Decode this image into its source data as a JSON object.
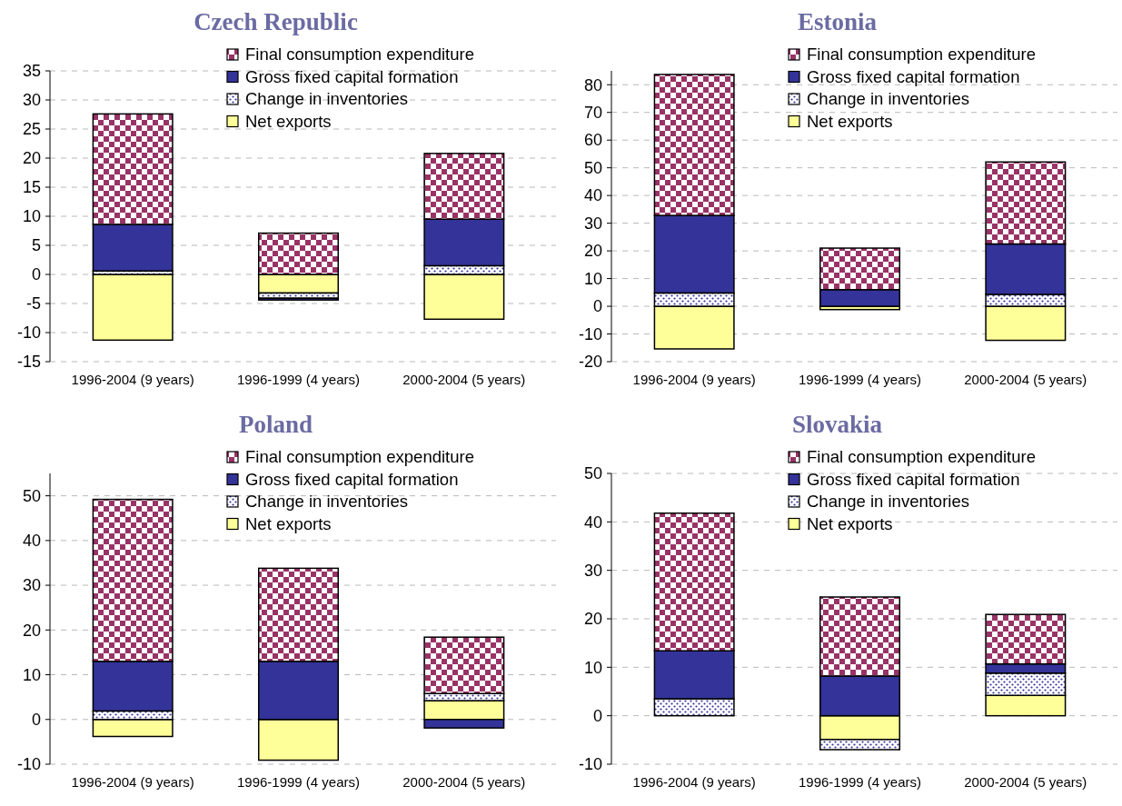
{
  "chart_data": [
    {
      "type": "bar",
      "stacked": true,
      "title": "Czech Republic",
      "categories": [
        "1996-2004 (9 years)",
        "1996-1999 (4 years)",
        "2000-2004 (5 years)"
      ],
      "series": [
        {
          "name": "Net exports",
          "color": "#ffff99",
          "values": [
            -11.3,
            -3.2,
            -7.7
          ]
        },
        {
          "name": "Change in inventories",
          "color": "#333399",
          "values": [
            0.6,
            -0.9,
            1.5
          ]
        },
        {
          "name": "Gross fixed capital formation",
          "color": "#333399",
          "values": [
            8.0,
            -0.3,
            8.0
          ]
        },
        {
          "name": "Final consumption expenditure",
          "color": "#993366",
          "values": [
            19.0,
            7.1,
            11.3
          ]
        }
      ],
      "ylim": [
        -15,
        35
      ],
      "yticks": [
        -15,
        -10,
        -5,
        0,
        5,
        10,
        15,
        20,
        25,
        30,
        35
      ],
      "grid": "y",
      "legend": "top right"
    },
    {
      "type": "bar",
      "stacked": true,
      "title": "Estonia",
      "categories": [
        "1996-2004 (9 years)",
        "1996-1999 (4 years)",
        "2000-2004 (5 years)"
      ],
      "series": [
        {
          "name": "Net exports",
          "color": "#ffff99",
          "values": [
            -15.4,
            -1.2,
            -12.3
          ]
        },
        {
          "name": "Change in inventories",
          "color": "#333399",
          "values": [
            4.8,
            0,
            4.3
          ]
        },
        {
          "name": "Gross fixed capital formation",
          "color": "#333399",
          "values": [
            28.0,
            6.0,
            18.2
          ]
        },
        {
          "name": "Final consumption expenditure",
          "color": "#993366",
          "values": [
            50.9,
            15.0,
            29.6
          ]
        }
      ],
      "ylim": [
        -20,
        85
      ],
      "yticks": [
        -20,
        -10,
        0,
        10,
        20,
        30,
        40,
        50,
        60,
        70,
        80
      ],
      "grid": "y",
      "legend": "top right"
    },
    {
      "type": "bar",
      "stacked": true,
      "title": "Poland",
      "categories": [
        "1996-2004 (9 years)",
        "1996-1999 (4 years)",
        "2000-2004 (5 years)"
      ],
      "series": [
        {
          "name": "Net exports",
          "color": "#ffff99",
          "values": [
            -3.8,
            -9.1,
            4.2
          ]
        },
        {
          "name": "Change in inventories",
          "color": "#333399",
          "values": [
            1.9,
            0,
            1.6
          ]
        },
        {
          "name": "Gross fixed capital formation",
          "color": "#333399",
          "values": [
            11.1,
            13.0,
            -1.9
          ]
        },
        {
          "name": "Final consumption expenditure",
          "color": "#993366",
          "values": [
            36.2,
            20.8,
            12.6
          ]
        }
      ],
      "ylim": [
        -10,
        55
      ],
      "yticks": [
        -10,
        0,
        10,
        20,
        30,
        40,
        50
      ],
      "grid": "y",
      "legend": "top right"
    },
    {
      "type": "bar",
      "stacked": true,
      "title": "Slovakia",
      "categories": [
        "1996-2004 (9 years)",
        "1996-1999 (4 years)",
        "2000-2004 (5 years)"
      ],
      "series": [
        {
          "name": "Net exports",
          "color": "#ffff99",
          "values": [
            0,
            -4.9,
            4.2
          ]
        },
        {
          "name": "Change in inventories",
          "color": "#333399",
          "values": [
            3.5,
            -2.1,
            4.6
          ]
        },
        {
          "name": "Gross fixed capital formation",
          "color": "#333399",
          "values": [
            9.9,
            8.2,
            1.9
          ]
        },
        {
          "name": "Final consumption expenditure",
          "color": "#993366",
          "values": [
            28.4,
            16.3,
            10.2
          ]
        }
      ],
      "ylim": [
        -10,
        50
      ],
      "yticks": [
        -10,
        0,
        10,
        20,
        30,
        40,
        50
      ],
      "grid": "y",
      "legend": "top right"
    }
  ]
}
